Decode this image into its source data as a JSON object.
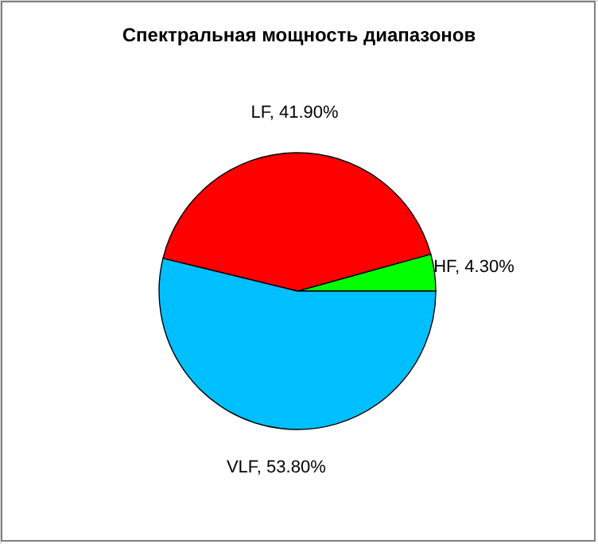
{
  "chart_data": {
    "type": "pie",
    "title": "Спектральная мощность диапазонов",
    "categories": [
      "HF",
      "LF",
      "VLF"
    ],
    "values": [
      4.3,
      41.9,
      53.8
    ],
    "colors": [
      "#00ff00",
      "#ff0000",
      "#00bfff"
    ],
    "value_labels": [
      "4.30%",
      "41.90%",
      "53.80%"
    ]
  }
}
